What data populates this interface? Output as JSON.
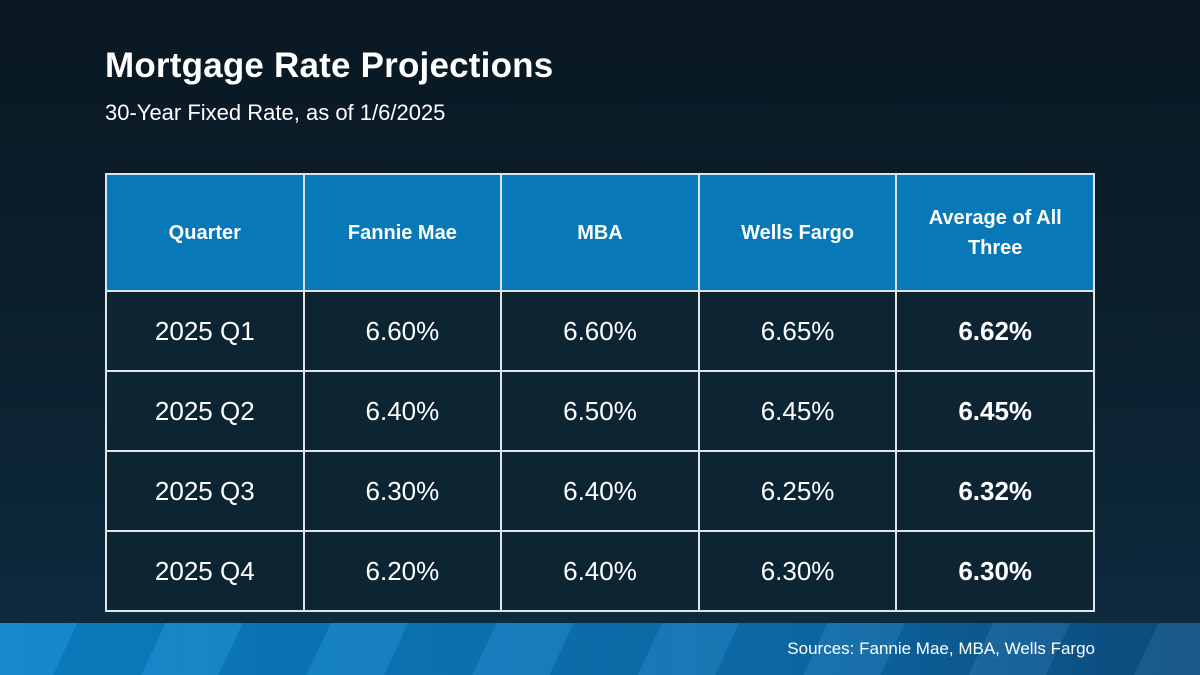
{
  "page": {
    "title": "Mortgage Rate Projections",
    "subtitle": "30-Year Fixed Rate, as of 1/6/2025",
    "footer_source": "Sources: Fannie Mae, MBA, Wells Fargo"
  },
  "colors": {
    "header_blue": "#0878b8",
    "cell_navy": "#0d2433",
    "table_border": "#dde5ea",
    "background_top": "#0a1822",
    "background_bottom": "#0e2c40",
    "footer_blue_left": "#0a84ca",
    "footer_blue_right": "#0d4f82",
    "text": "#ffffff"
  },
  "table": {
    "columns": [
      "Quarter",
      "Fannie Mae",
      "MBA",
      "Wells Fargo",
      "Average of All Three"
    ],
    "rows": [
      [
        "2025 Q1",
        "6.60%",
        "6.60%",
        "6.65%",
        "6.62%"
      ],
      [
        "2025 Q2",
        "6.40%",
        "6.50%",
        "6.45%",
        "6.45%"
      ],
      [
        "2025 Q3",
        "6.30%",
        "6.40%",
        "6.25%",
        "6.32%"
      ],
      [
        "2025 Q4",
        "6.20%",
        "6.40%",
        "6.30%",
        "6.30%"
      ]
    ],
    "bold_column_index": 4
  },
  "chart_data": {
    "type": "table",
    "title": "Mortgage Rate Projections",
    "subtitle": "30-Year Fixed Rate, as of 1/6/2025",
    "categories": [
      "2025 Q1",
      "2025 Q2",
      "2025 Q3",
      "2025 Q4"
    ],
    "series": [
      {
        "name": "Fannie Mae",
        "values": [
          6.6,
          6.4,
          6.3,
          6.2
        ]
      },
      {
        "name": "MBA",
        "values": [
          6.6,
          6.5,
          6.4,
          6.4
        ]
      },
      {
        "name": "Wells Fargo",
        "values": [
          6.65,
          6.45,
          6.25,
          6.3
        ]
      },
      {
        "name": "Average of All Three",
        "values": [
          6.62,
          6.45,
          6.32,
          6.3
        ]
      }
    ],
    "unit": "%",
    "source_note": "Sources: Fannie Mae, MBA, Wells Fargo"
  }
}
